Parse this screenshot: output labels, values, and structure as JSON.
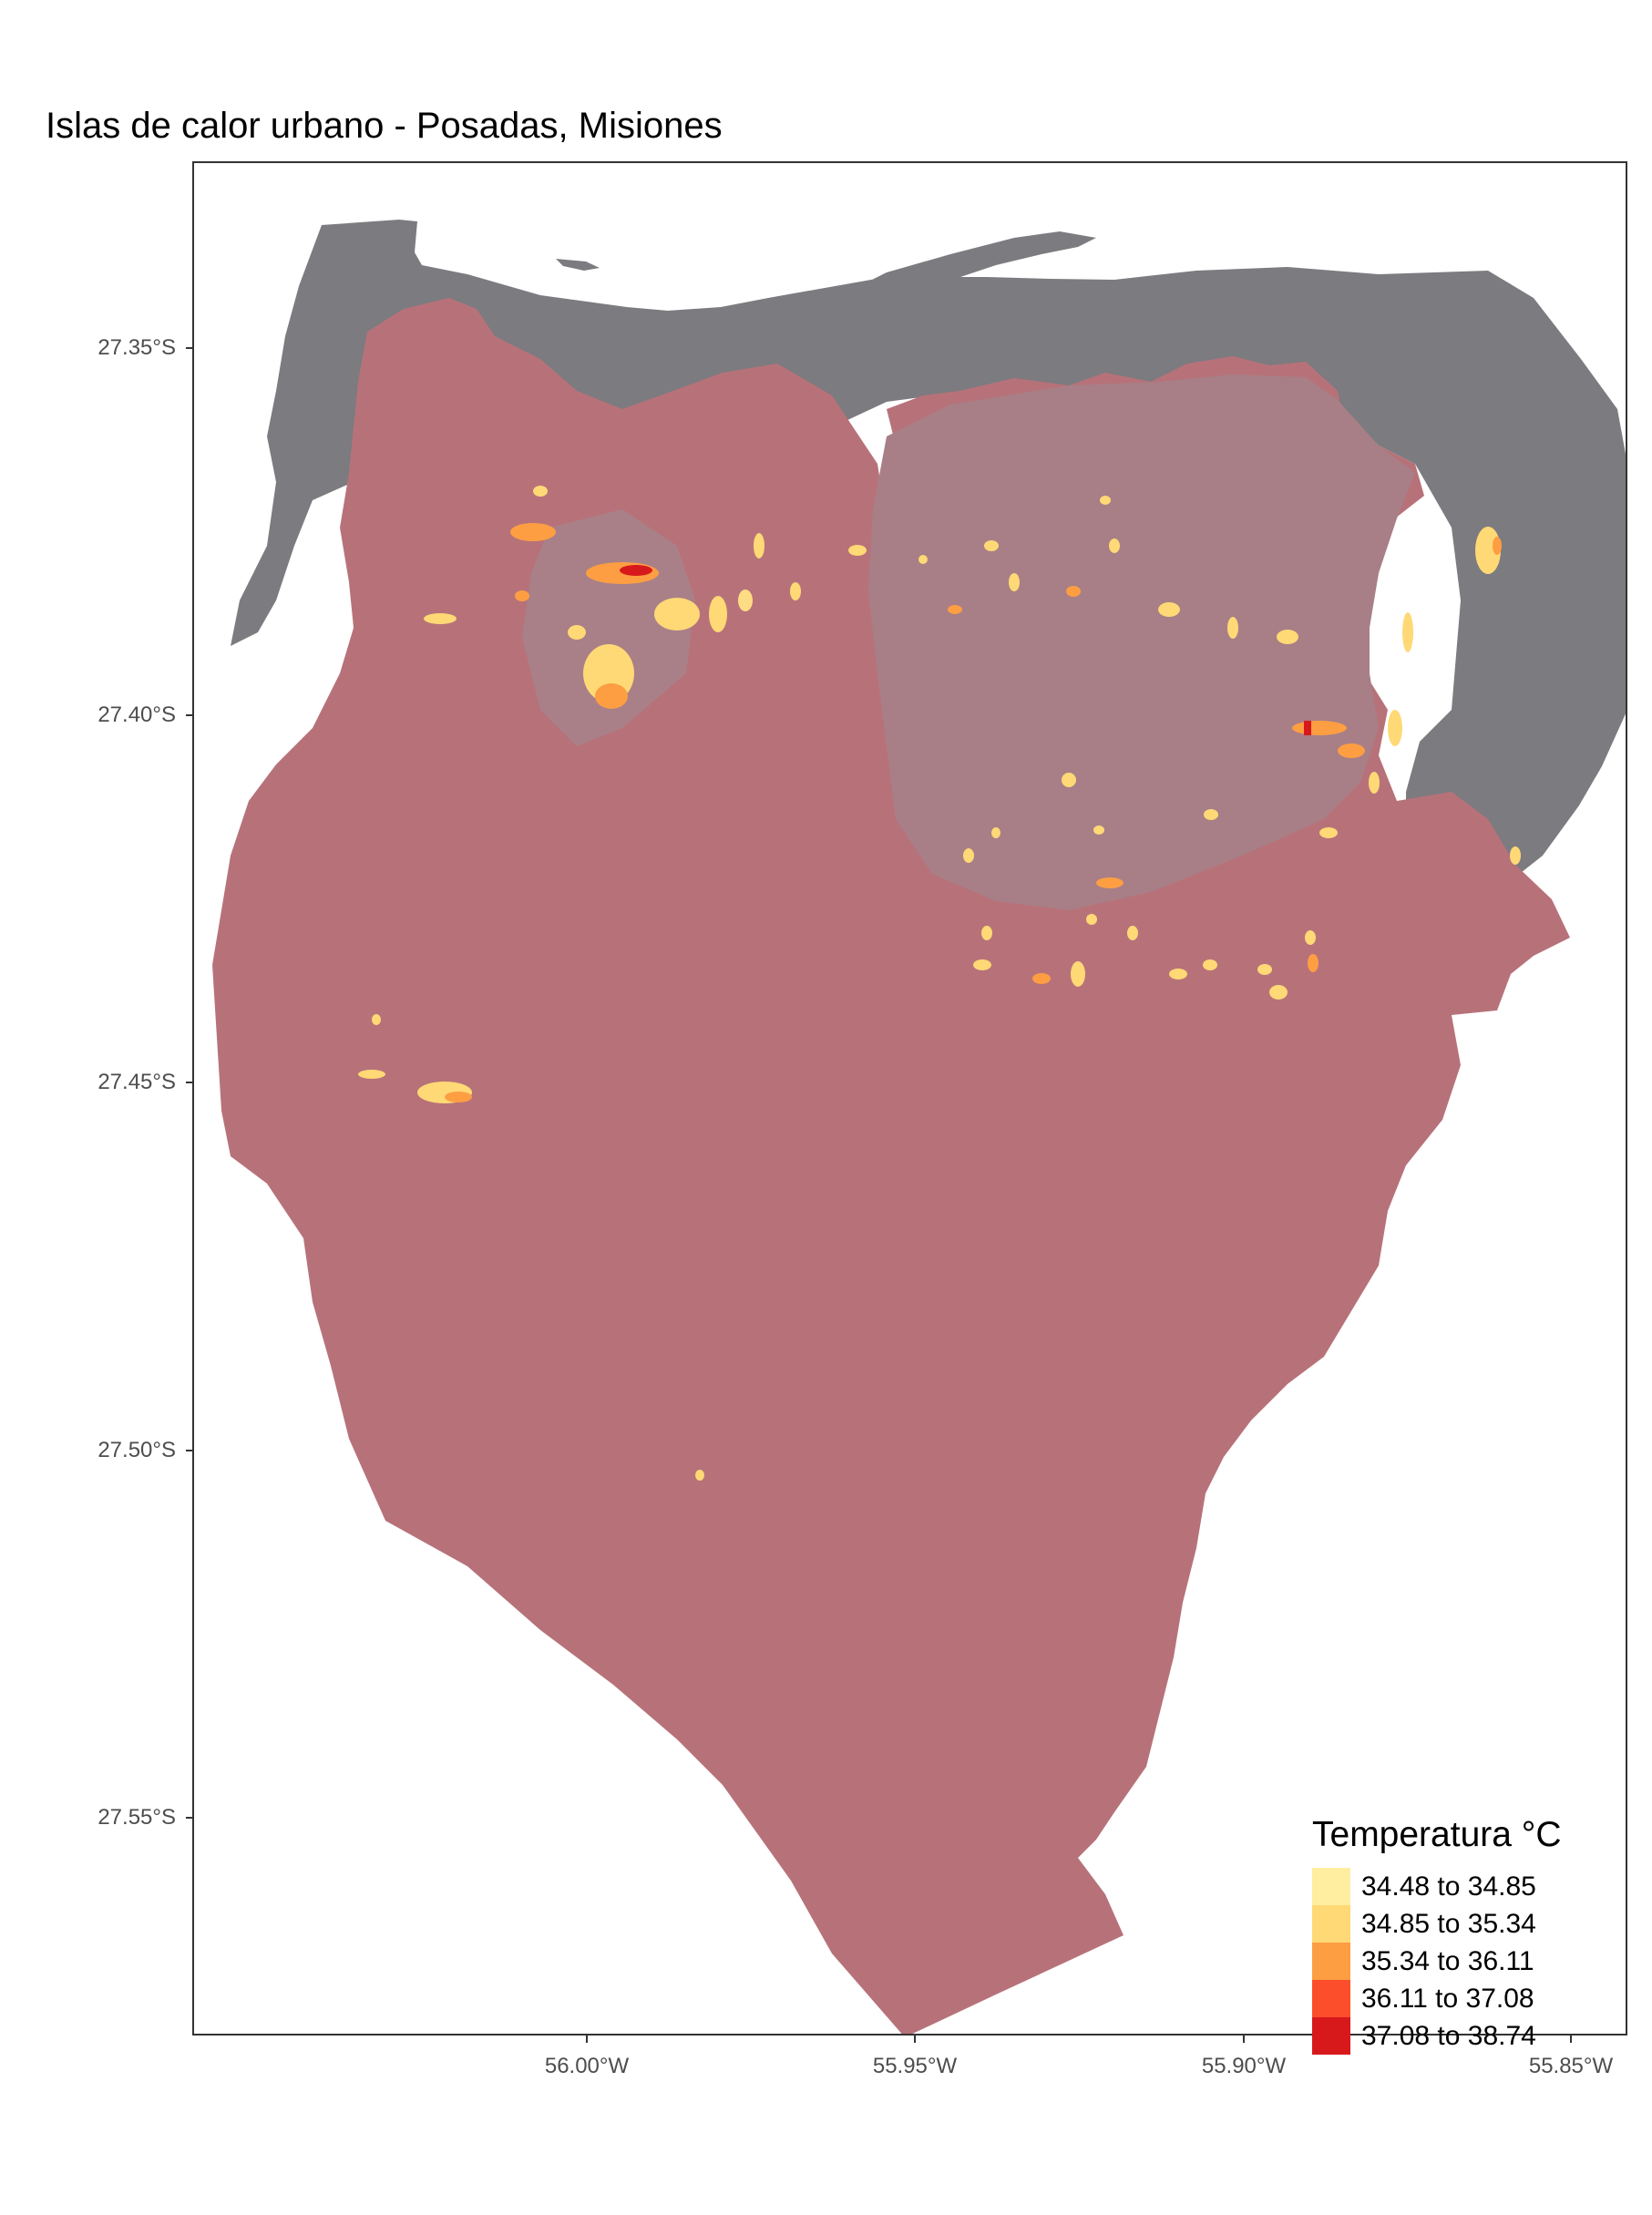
{
  "title": "Islas de calor urbano - Posadas, Misiones",
  "axes": {
    "y_ticks": [
      "27.35°S",
      "27.40°S",
      "27.45°S",
      "27.50°S",
      "27.55°S"
    ],
    "x_ticks": [
      "56.00°W",
      "55.95°W",
      "55.90°W",
      "55.85°W"
    ]
  },
  "legend": {
    "title": "Temperatura °C",
    "items": [
      {
        "label": "34.48 to 34.85",
        "color": "#FFEDA0"
      },
      {
        "label": "34.85 to 35.34",
        "color": "#FED976"
      },
      {
        "label": "35.34 to 36.11",
        "color": "#FD9E43"
      },
      {
        "label": "36.11 to 37.08",
        "color": "#FC4E2A"
      },
      {
        "label": "37.08 to 38.74",
        "color": "#D7191C"
      }
    ]
  },
  "colors": {
    "river": "#7c7b7f",
    "land": "#b77279",
    "urban": "#a87f86"
  }
}
